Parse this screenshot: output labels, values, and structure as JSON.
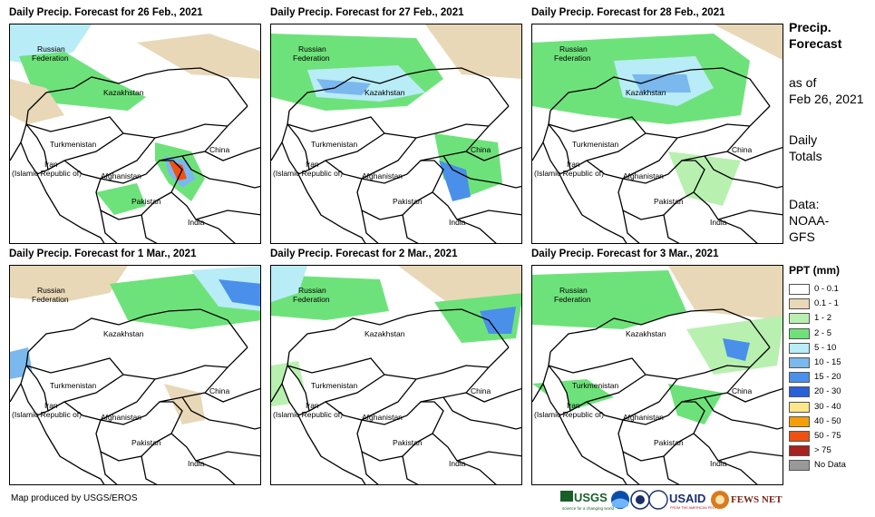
{
  "panels": [
    {
      "title": "Daily Precip. Forecast for 26 Feb., 2021"
    },
    {
      "title": "Daily Precip. Forecast for 27 Feb., 2021"
    },
    {
      "title": "Daily Precip. Forecast for 28 Feb., 2021"
    },
    {
      "title": "Daily Precip. Forecast for 1 Mar., 2021"
    },
    {
      "title": "Daily Precip. Forecast for 2 Mar., 2021"
    },
    {
      "title": "Daily Precip. Forecast for 3 Mar., 2021"
    }
  ],
  "map_labels": {
    "russia_1": "Russian",
    "russia_2": "Federation",
    "kazakhstan": "Kazakhstan",
    "turkmenistan": "Turkmenistan",
    "china": "China",
    "iran_1": "Iran",
    "iran_2": "(Islamic Republic of)",
    "afghanistan": "Afghanistan",
    "pakistan": "Pakistan",
    "india": "India"
  },
  "sidebar": {
    "heading_1": "Precip.",
    "heading_2": "Forecast",
    "asof_1": "as of",
    "asof_2": "Feb 26, 2021",
    "daily_1": "Daily",
    "daily_2": "Totals",
    "data_1": "Data:",
    "data_2": "NOAA-",
    "data_3": "GFS"
  },
  "legend": {
    "title": "PPT (mm)",
    "items": [
      {
        "label": "0 - 0.1",
        "color": "#ffffff"
      },
      {
        "label": "0.1 - 1",
        "color": "#e8d8b8"
      },
      {
        "label": "1 - 2",
        "color": "#b8f0b0"
      },
      {
        "label": "2 - 5",
        "color": "#6ee27a"
      },
      {
        "label": "5 - 10",
        "color": "#b8ecf6"
      },
      {
        "label": "10 - 15",
        "color": "#7ab8ee"
      },
      {
        "label": "15 - 20",
        "color": "#4a90ea"
      },
      {
        "label": "20 - 30",
        "color": "#2860d8"
      },
      {
        "label": "30 - 40",
        "color": "#fde68a"
      },
      {
        "label": "40 - 50",
        "color": "#f59e0b"
      },
      {
        "label": "50 - 75",
        "color": "#f05010"
      },
      {
        "label": "> 75",
        "color": "#a82020"
      },
      {
        "label": "No Data",
        "color": "#999999"
      }
    ]
  },
  "footer": {
    "credit": "Map produced by USGS/EROS"
  },
  "logos": {
    "usgs": "USGS",
    "usgs_tag": "science for a changing world",
    "usaid": "USAID",
    "usaid_tag": "FROM THE AMERICAN PEOPLE",
    "fewsnet": "FEWS NET"
  }
}
